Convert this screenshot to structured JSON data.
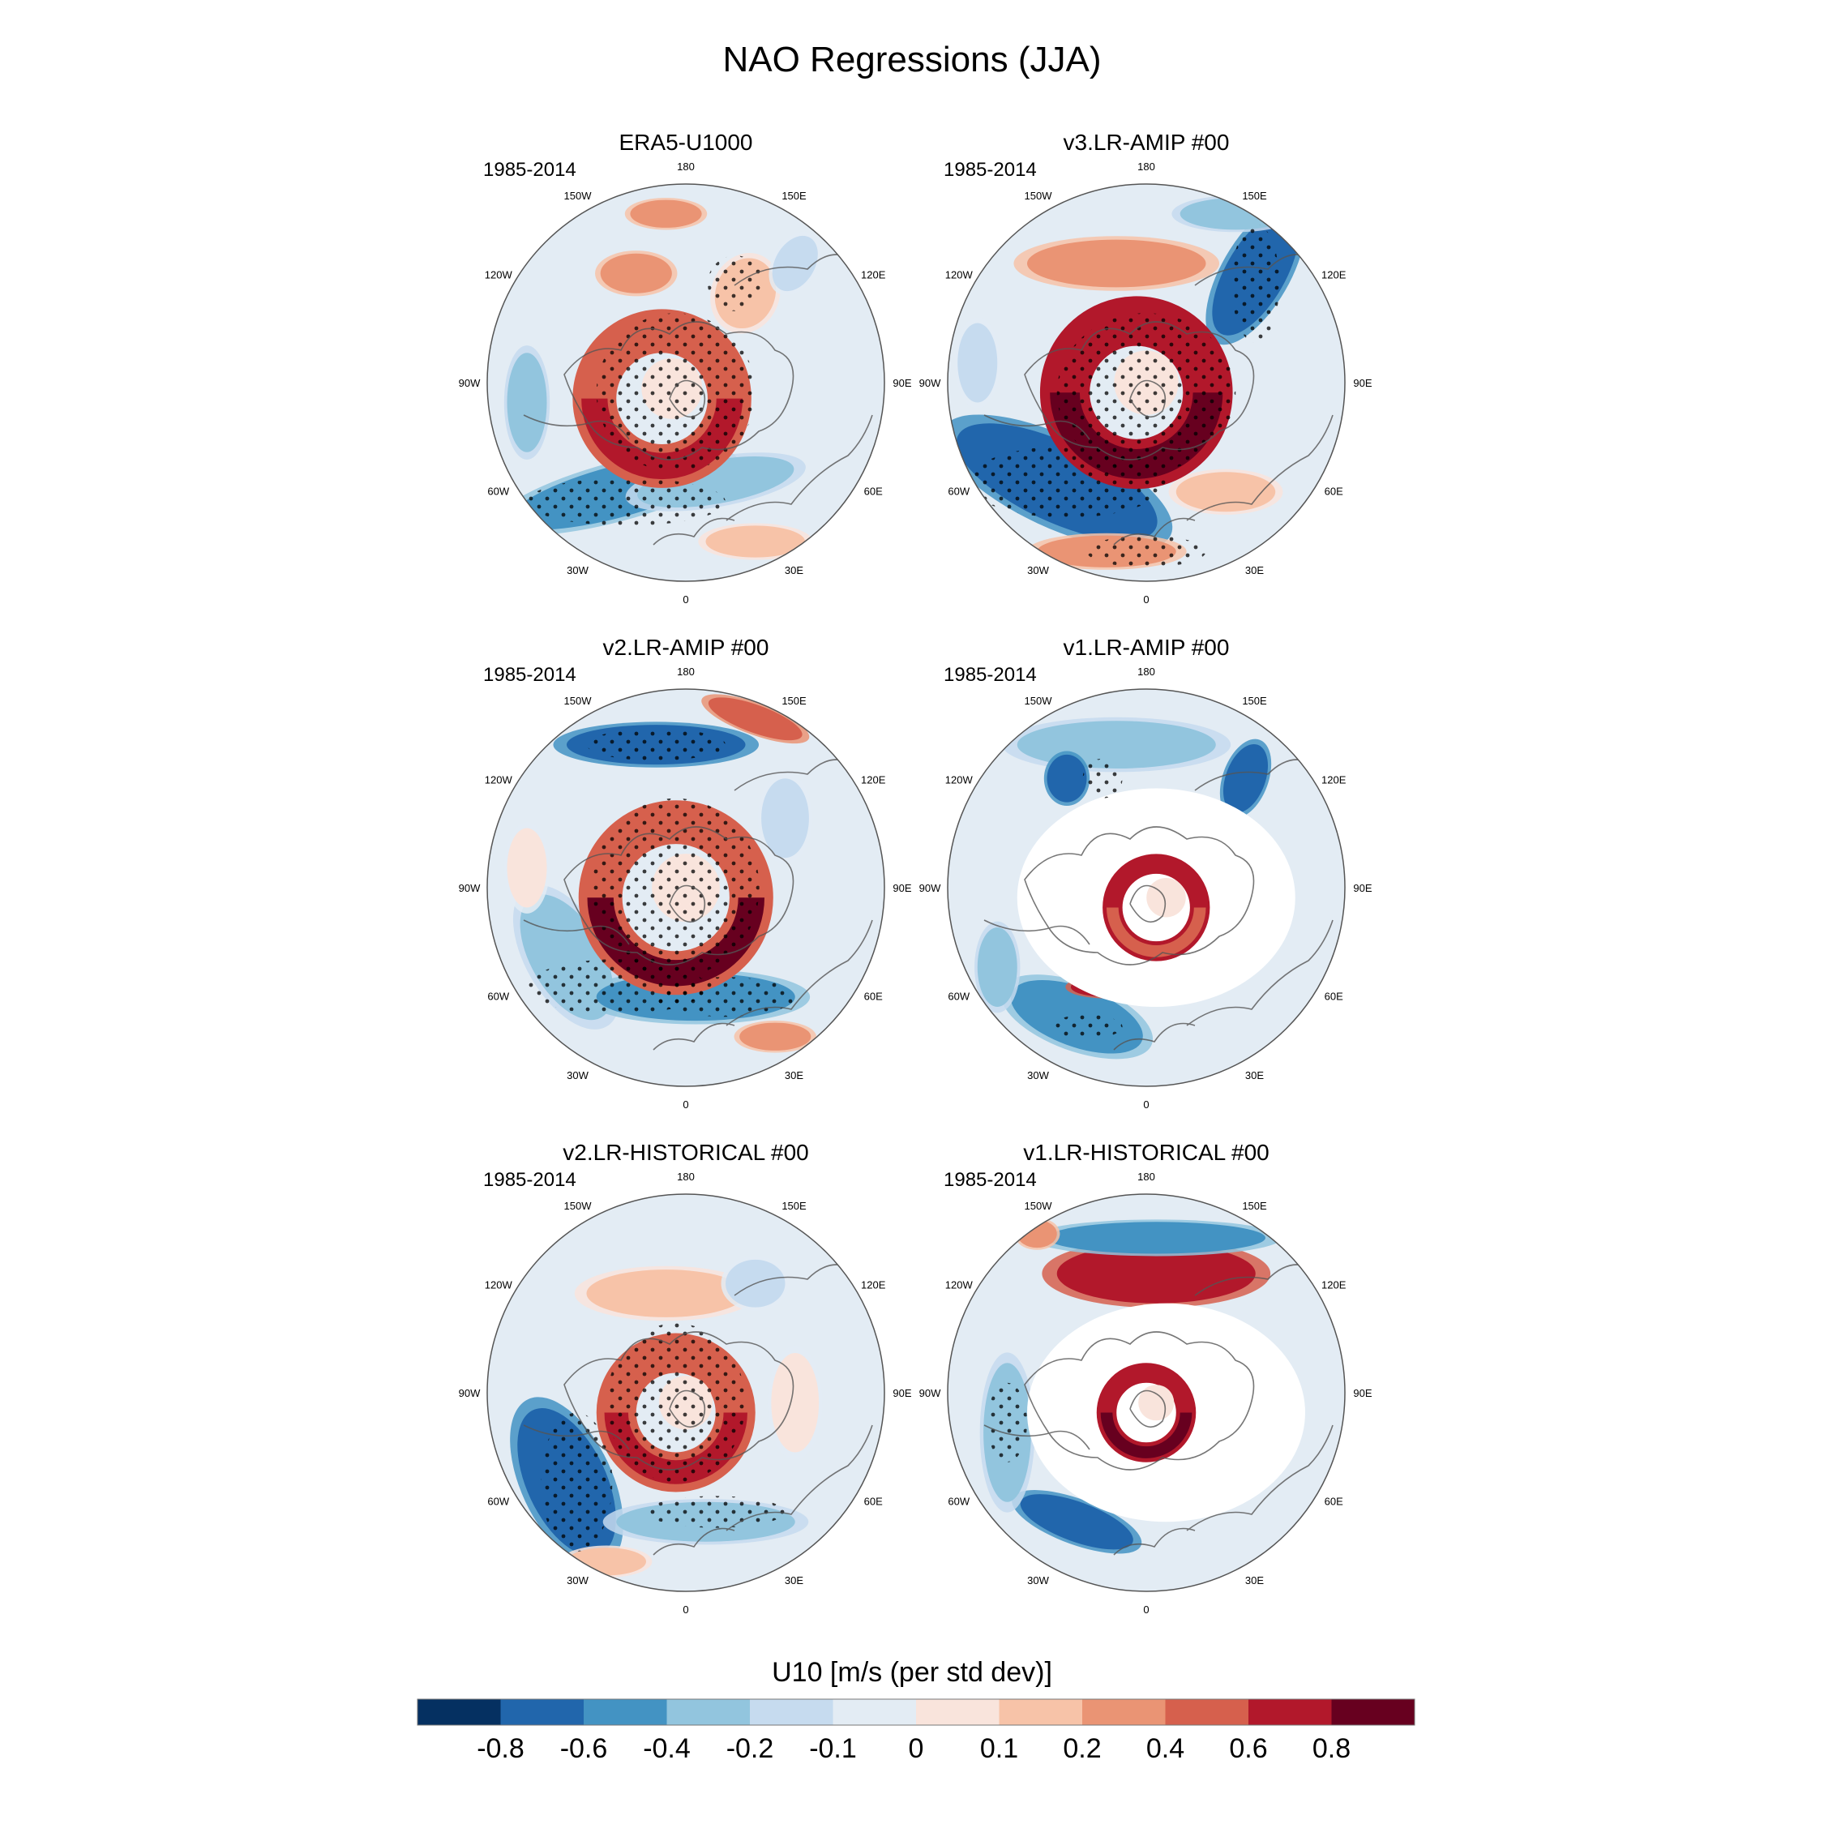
{
  "figure": {
    "title": "NAO Regressions (JJA)",
    "colorbar_label": "U10 [m/s (per std dev)]"
  },
  "panels": [
    {
      "title": "ERA5-U1000",
      "period": "1985-2014",
      "pattern": "era5"
    },
    {
      "title": "v3.LR-AMIP  #00",
      "period": "1985-2014",
      "pattern": "v3amip"
    },
    {
      "title": "v2.LR-AMIP  #00",
      "period": "1985-2014",
      "pattern": "v2amip"
    },
    {
      "title": "v1.LR-AMIP  #00",
      "period": "1985-2014",
      "pattern": "v1amip",
      "masked": true
    },
    {
      "title": "v2.LR-HISTORICAL  #00",
      "period": "1985-2014",
      "pattern": "v2hist"
    },
    {
      "title": "v1.LR-HISTORICAL  #00",
      "period": "1985-2014",
      "pattern": "v1hist",
      "masked": true
    }
  ],
  "longitude_labels": [
    "180",
    "150E",
    "120E",
    "90E",
    "60E",
    "30E",
    "0",
    "30W",
    "60W",
    "90W",
    "120W",
    "150W"
  ],
  "colorbar": {
    "colors": [
      "#053061",
      "#2166ac",
      "#4393c3",
      "#92c5de",
      "#c6dbef",
      "#e3ecf4",
      "#f9e4dc",
      "#f7c3a8",
      "#ea9474",
      "#d6604d",
      "#b2182b",
      "#67001f"
    ],
    "tick_labels": [
      "-0.8",
      "-0.6",
      "-0.4",
      "-0.2",
      "-0.1",
      "0",
      "0.1",
      "0.2",
      "0.4",
      "0.6",
      "0.8"
    ]
  }
}
